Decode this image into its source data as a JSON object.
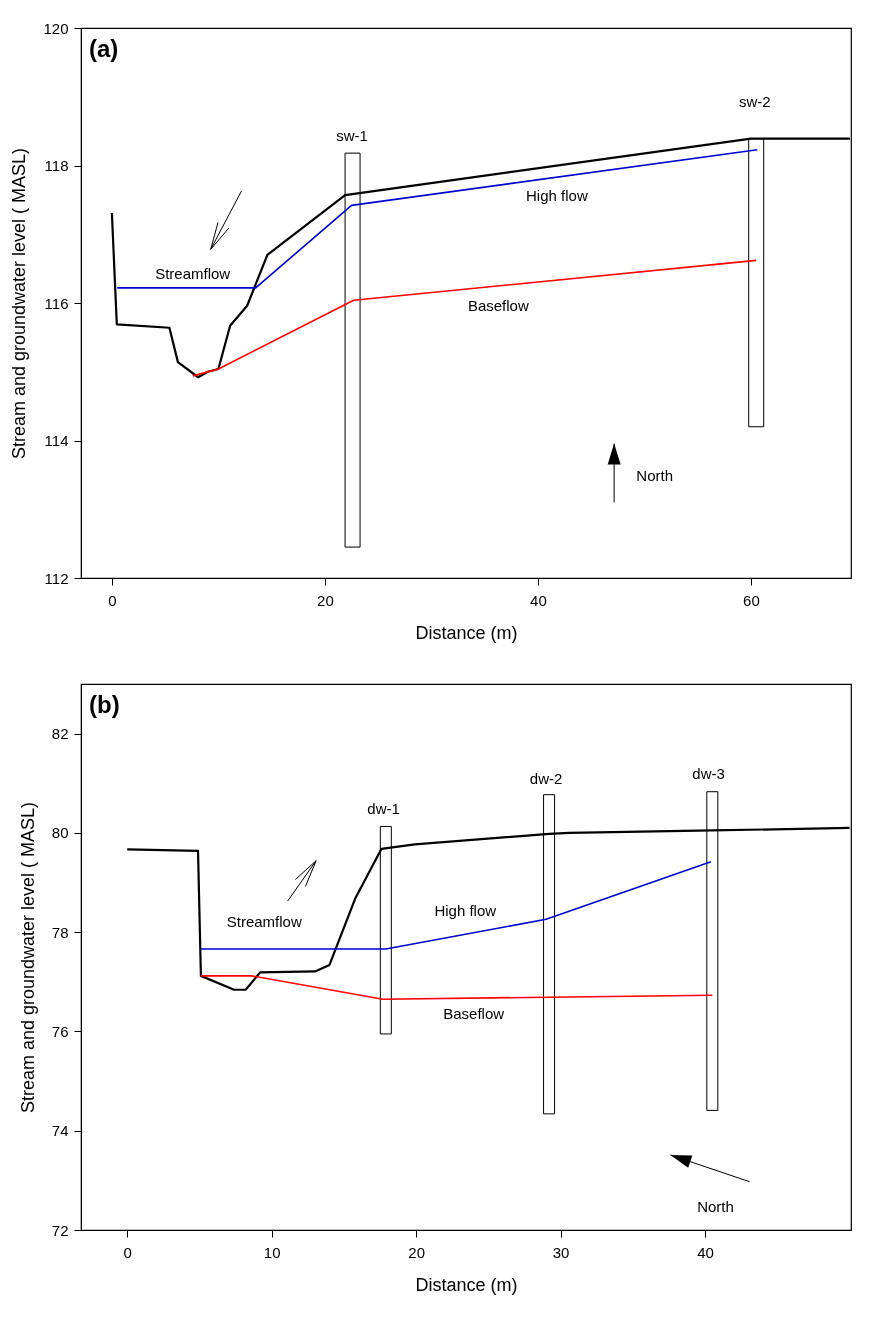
{
  "chart_data": [
    {
      "type": "line",
      "title": "(a)",
      "xlabel": "Distance (m)",
      "ylabel": "Stream and groundwater level ( MASL)",
      "xlim": [
        -2.9,
        69.4
      ],
      "ylim": [
        112,
        120
      ],
      "xticks": [
        0,
        20,
        40,
        60
      ],
      "yticks": [
        112,
        114,
        116,
        118,
        120
      ],
      "series": [
        {
          "type": "bar",
          "color": "#ffffff",
          "x": [
            22.6,
            60.5
          ],
          "base": [
            112.45,
            114.2
          ],
          "values": [
            5.73,
            4.19
          ]
        },
        {
          "color": "#000000",
          "x": [
            0,
            0.46,
            5.4,
            6.2,
            8.1,
            9.0,
            10.0,
            11.1,
            12.7,
            14.6,
            21.9,
            60.0,
            61.2,
            69.3
          ],
          "values": [
            117.31,
            115.69,
            115.64,
            115.14,
            114.92,
            115.0,
            115.04,
            115.67,
            115.96,
            116.7,
            117.57,
            118.39,
            118.39,
            118.39
          ]
        },
        {
          "color": "#0000cc",
          "x": [
            0.5,
            13.5,
            22.5,
            60.6
          ],
          "values": [
            116.22,
            116.22,
            117.42,
            118.23
          ]
        },
        {
          "color": "#ff0000",
          "x": [
            7.6,
            10.0,
            22.7,
            60.5
          ],
          "values": [
            114.94,
            115.04,
            116.04,
            116.62
          ]
        }
      ],
      "annotations": [
        "sw-1",
        "sw-2",
        "Streamflow",
        "High flow",
        "Baseflow",
        "North"
      ]
    },
    {
      "type": "line",
      "title": "(b)",
      "xlabel": "Distance (m)",
      "ylabel": "Stream and groundwater level ( MASL)",
      "xlim": [
        -3.2,
        50.1
      ],
      "ylim": [
        72,
        83
      ],
      "xticks": [
        0,
        10,
        20,
        30,
        40
      ],
      "yticks": [
        72,
        74,
        76,
        78,
        80,
        82
      ],
      "series": [
        {
          "type": "bar",
          "color": "#ffffff",
          "x": [
            17.9,
            29.2,
            40.5
          ],
          "base": [
            75.95,
            74.34,
            74.41
          ],
          "values": [
            4.18,
            6.43,
            6.42
          ]
        },
        {
          "color": "#000000",
          "x": [
            0,
            4.9,
            5.1,
            7.4,
            8.2,
            9.2,
            13.0,
            14.0,
            15.8,
            17.6,
            19.9,
            29.2,
            30.6,
            40.5,
            50.0
          ],
          "values": [
            79.67,
            79.64,
            77.12,
            76.84,
            76.84,
            77.19,
            77.21,
            77.34,
            78.69,
            79.68,
            79.77,
            79.98,
            80.0,
            80.05,
            80.1
          ]
        },
        {
          "color": "#0000cc",
          "x": [
            5.1,
            17.9,
            29.0,
            40.4
          ],
          "values": [
            77.66,
            77.66,
            78.26,
            79.42
          ]
        },
        {
          "color": "#ff0000",
          "x": [
            5.1,
            8.6,
            17.7,
            29.2,
            40.5
          ],
          "values": [
            77.12,
            77.12,
            76.65,
            76.69,
            76.73
          ]
        }
      ],
      "annotations": [
        "dw-1",
        "dw-2",
        "dw-3",
        "Streamflow",
        "High flow",
        "Baseflow",
        "North"
      ]
    }
  ]
}
